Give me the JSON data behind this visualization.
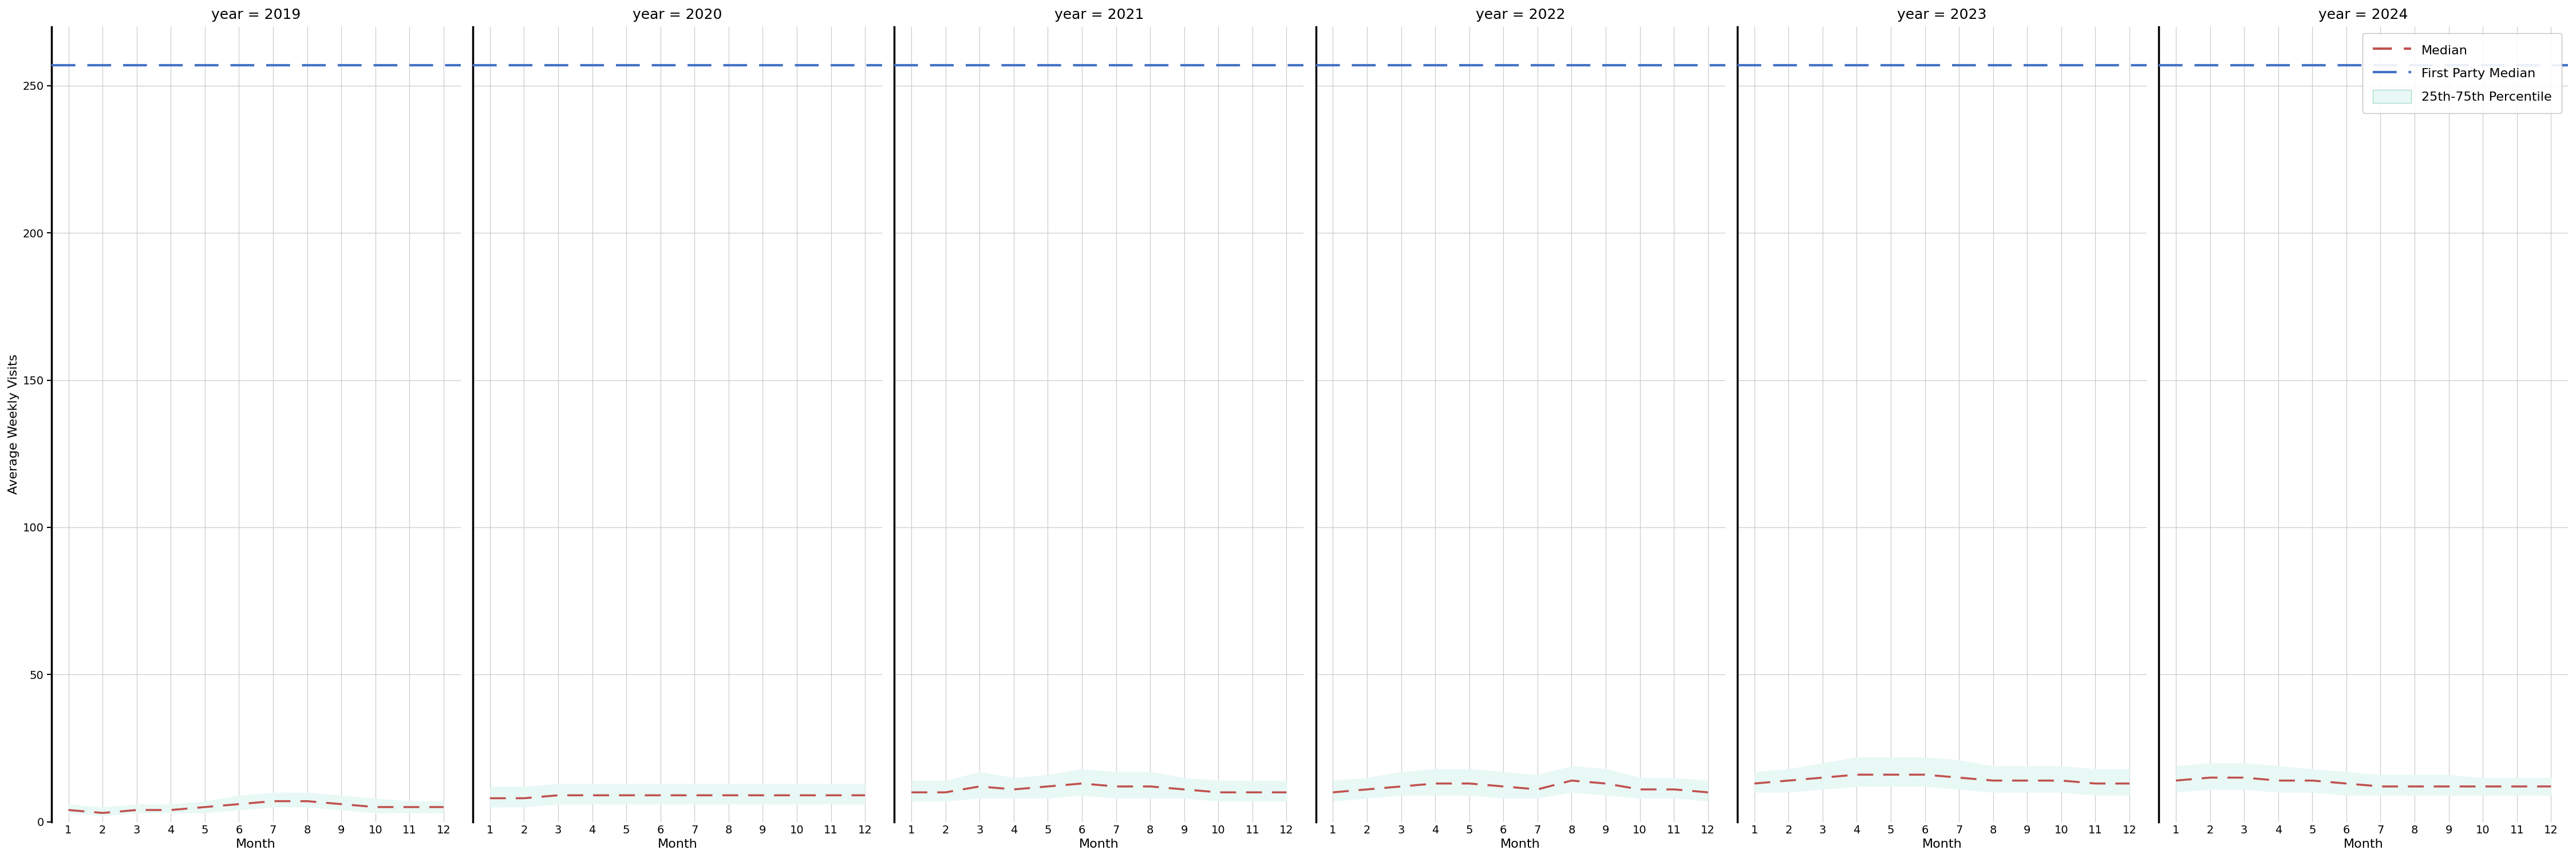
{
  "years": [
    2019,
    2020,
    2021,
    2022,
    2023,
    2024
  ],
  "months": [
    1,
    2,
    3,
    4,
    5,
    6,
    7,
    8,
    9,
    10,
    11,
    12
  ],
  "first_party_median": 257,
  "median_by_year": {
    "2019": [
      4,
      3,
      4,
      4,
      5,
      6,
      7,
      7,
      6,
      5,
      5,
      5
    ],
    "2020": [
      8,
      8,
      9,
      9,
      9,
      9,
      9,
      9,
      9,
      9,
      9,
      9
    ],
    "2021": [
      10,
      10,
      12,
      11,
      12,
      13,
      12,
      12,
      11,
      10,
      10,
      10
    ],
    "2022": [
      10,
      11,
      12,
      13,
      13,
      12,
      11,
      14,
      13,
      11,
      11,
      10
    ],
    "2023": [
      13,
      14,
      15,
      16,
      16,
      16,
      15,
      14,
      14,
      14,
      13,
      13
    ],
    "2024": [
      14,
      15,
      15,
      14,
      14,
      13,
      12,
      12,
      12,
      12,
      12,
      12
    ]
  },
  "percentile_25_by_year": {
    "2019": [
      3,
      2,
      3,
      3,
      3,
      4,
      5,
      5,
      4,
      3,
      3,
      3
    ],
    "2020": [
      5,
      5,
      6,
      6,
      6,
      6,
      6,
      6,
      6,
      6,
      6,
      6
    ],
    "2021": [
      7,
      7,
      8,
      8,
      8,
      9,
      8,
      8,
      8,
      7,
      7,
      7
    ],
    "2022": [
      7,
      8,
      9,
      9,
      9,
      8,
      8,
      10,
      9,
      8,
      8,
      7
    ],
    "2023": [
      10,
      10,
      11,
      12,
      12,
      12,
      11,
      10,
      10,
      10,
      9,
      9
    ],
    "2024": [
      10,
      11,
      11,
      10,
      10,
      9,
      9,
      9,
      9,
      9,
      9,
      9
    ]
  },
  "percentile_75_by_year": {
    "2019": [
      6,
      5,
      6,
      6,
      7,
      9,
      10,
      10,
      9,
      8,
      7,
      7
    ],
    "2020": [
      12,
      12,
      13,
      13,
      13,
      13,
      13,
      13,
      13,
      13,
      13,
      13
    ],
    "2021": [
      14,
      14,
      17,
      15,
      16,
      18,
      17,
      17,
      15,
      14,
      14,
      14
    ],
    "2022": [
      14,
      15,
      17,
      18,
      18,
      17,
      16,
      19,
      18,
      15,
      15,
      14
    ],
    "2023": [
      17,
      18,
      20,
      22,
      22,
      22,
      21,
      19,
      19,
      19,
      18,
      18
    ],
    "2024": [
      19,
      20,
      20,
      19,
      18,
      17,
      16,
      16,
      16,
      15,
      15,
      15
    ]
  },
  "ylim": [
    0,
    270
  ],
  "yticks": [
    0,
    50,
    100,
    150,
    200,
    250
  ],
  "ylabel": "Average Weekly Visits",
  "xlabel": "Month",
  "median_color": "#c0504d",
  "first_party_color": "#4472c4",
  "percentile_color": "#e8f8f5",
  "background_color": "#ffffff",
  "grid_color": "#c8c8c8",
  "title_fontsize": 18,
  "axis_label_fontsize": 16,
  "tick_fontsize": 14,
  "legend_fontsize": 16
}
